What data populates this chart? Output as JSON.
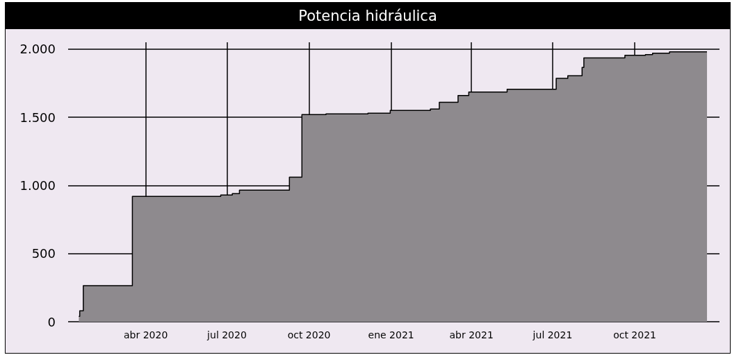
{
  "chart_data": {
    "type": "step",
    "title": "Potencia hidráulica",
    "x": [
      "2020-01-17",
      "2020-01-18",
      "2020-01-22",
      "2020-03-17",
      "2020-06-11",
      "2020-06-24",
      "2020-07-07",
      "2020-07-15",
      "2020-09-09",
      "2020-09-23",
      "2020-10-20",
      "2020-12-06",
      "2020-12-31",
      "2021-02-14",
      "2021-02-24",
      "2021-03-17",
      "2021-03-29",
      "2021-05-11",
      "2021-07-05",
      "2021-07-18",
      "2021-08-03",
      "2021-08-05",
      "2021-09-20",
      "2021-10-13",
      "2021-10-21",
      "2021-11-09",
      "2021-12-21"
    ],
    "series": [
      {
        "type": "area",
        "color": "#8e8a8e",
        "values": [
          40,
          80,
          265,
          920,
          920,
          930,
          940,
          965,
          1060,
          1520,
          1525,
          1530,
          1550,
          1560,
          1610,
          1660,
          1685,
          1705,
          1785,
          1805,
          1865,
          1935,
          1955,
          1960,
          1970,
          1980,
          1980
        ]
      },
      {
        "color": "#000000",
        "values": [
          40,
          80,
          265,
          920,
          920,
          930,
          940,
          965,
          1060,
          1520,
          1525,
          1530,
          1550,
          1560,
          1610,
          1660,
          1685,
          1705,
          1785,
          1805,
          1865,
          1935,
          1955,
          1960,
          1970,
          1980,
          1980
        ]
      }
    ],
    "xlim": [
      "2020-01-05",
      "2022-01-04"
    ],
    "xticks": [
      {
        "value": "2020-04-01",
        "label": "abr 2020"
      },
      {
        "value": "2020-07-01",
        "label": "jul 2020"
      },
      {
        "value": "2020-10-01",
        "label": "oct 2020"
      },
      {
        "value": "2021-01-01",
        "label": "ene 2021"
      },
      {
        "value": "2021-04-01",
        "label": "abr 2021"
      },
      {
        "value": "2021-07-01",
        "label": "jul 2021"
      },
      {
        "value": "2021-10-01",
        "label": "oct 2021"
      }
    ],
    "ylim": [
      0,
      2050
    ],
    "yticks": [
      0,
      500,
      {
        "value": 1000,
        "label": "1.000"
      },
      {
        "value": 1500,
        "label": "1.500"
      },
      {
        "value": 2000,
        "label": "2.000"
      }
    ],
    "grid": true
  }
}
